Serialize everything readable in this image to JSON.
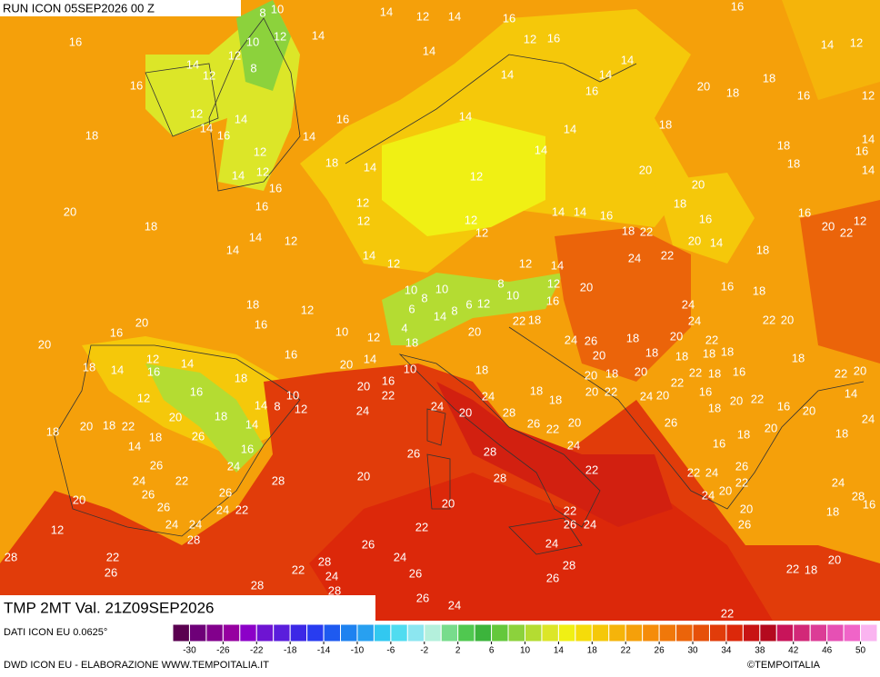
{
  "header": {
    "run": "RUN ICON 05SEP2026 00 Z",
    "field": "TMP 2MT Val. 21Z09SEP2026"
  },
  "map_labels": [
    8,
    10,
    14,
    12,
    14,
    16,
    12,
    16,
    16,
    16,
    10,
    12,
    14,
    14,
    14,
    12,
    12,
    8,
    16,
    14,
    16,
    14,
    14,
    14,
    12,
    20,
    18,
    18,
    16,
    12,
    18,
    12,
    14,
    16,
    14,
    16,
    14,
    14,
    14,
    18,
    18,
    14,
    12,
    14,
    12,
    16,
    18,
    14,
    12,
    14,
    20,
    18,
    16,
    14,
    20,
    18,
    12,
    12,
    16,
    14,
    14,
    12,
    14,
    12,
    12,
    12,
    14,
    14,
    16,
    18,
    22,
    18,
    20,
    16,
    20,
    14,
    18,
    16,
    20,
    22,
    12,
    24,
    22,
    12,
    14,
    20,
    8,
    10,
    12,
    18,
    16,
    20,
    16,
    20,
    12,
    10,
    12,
    10,
    8,
    6,
    14,
    8,
    6,
    12,
    10,
    16,
    22,
    18,
    20,
    4,
    18,
    16,
    20,
    14,
    16,
    22,
    20,
    10,
    18,
    18,
    14,
    12,
    16,
    14,
    18,
    12,
    16,
    14,
    8,
    10,
    12,
    18,
    14,
    20,
    18,
    20,
    18,
    22,
    18,
    26,
    14,
    16,
    24,
    24,
    24,
    20,
    24,
    28,
    18,
    18,
    26,
    20,
    22,
    24,
    26,
    24,
    22,
    20,
    26,
    26,
    28,
    20,
    26,
    28,
    28,
    22,
    20,
    22,
    26,
    24,
    24,
    24,
    22,
    28,
    26,
    24,
    12,
    22,
    26,
    24,
    28,
    22,
    26,
    28,
    24,
    22,
    24,
    26,
    28,
    26,
    28,
    28,
    26,
    24,
    22,
    22,
    18,
    20,
    24,
    26,
    20,
    18,
    20,
    24,
    24,
    22,
    18,
    18,
    22,
    18,
    16,
    18,
    16,
    18,
    22,
    20,
    18,
    22,
    20,
    14,
    16,
    20,
    22,
    20,
    18,
    16,
    22,
    26,
    20,
    24,
    22,
    18,
    20,
    20,
    20,
    18,
    16,
    18,
    20,
    18,
    24,
    22,
    24,
    26,
    22,
    20,
    24,
    20,
    26,
    24,
    28,
    16,
    18
  ],
  "colorbar": {
    "lim": [
      -32,
      52
    ],
    "ticks": [
      -30,
      -26,
      -22,
      -18,
      -14,
      -10,
      -6,
      -2,
      2,
      6,
      10,
      14,
      18,
      22,
      26,
      30,
      34,
      38,
      42,
      46,
      50
    ],
    "colors": [
      "#5a0050",
      "#6e0078",
      "#82008c",
      "#9600a0",
      "#8c00c8",
      "#6e14d2",
      "#5a1edc",
      "#3c28e6",
      "#283cf0",
      "#1e5af0",
      "#1e82f0",
      "#28a0f0",
      "#32c8f0",
      "#50dcf0",
      "#8ce6f0",
      "#b4f0dc",
      "#78dc8c",
      "#50c850",
      "#3cb43c",
      "#64c83c",
      "#8cd23c",
      "#b4dc32",
      "#dce628",
      "#f0f014",
      "#f5dc0a",
      "#f5c80a",
      "#f5b40a",
      "#f5a00a",
      "#f58c0a",
      "#f0780a",
      "#eb640a",
      "#e6500a",
      "#e13c0a",
      "#dc280a",
      "#c81414",
      "#b40a1e",
      "#c8145a",
      "#d22878",
      "#dc3c96",
      "#e650b4",
      "#f064c8",
      "#fab4f0"
    ]
  },
  "footer": {
    "source": "DATI ICON EU 0.0625°",
    "credit": "DWD ICON EU - ELABORAZIONE WWW.TEMPOITALIA.IT",
    "brand": "©TEMPOITALIA"
  }
}
